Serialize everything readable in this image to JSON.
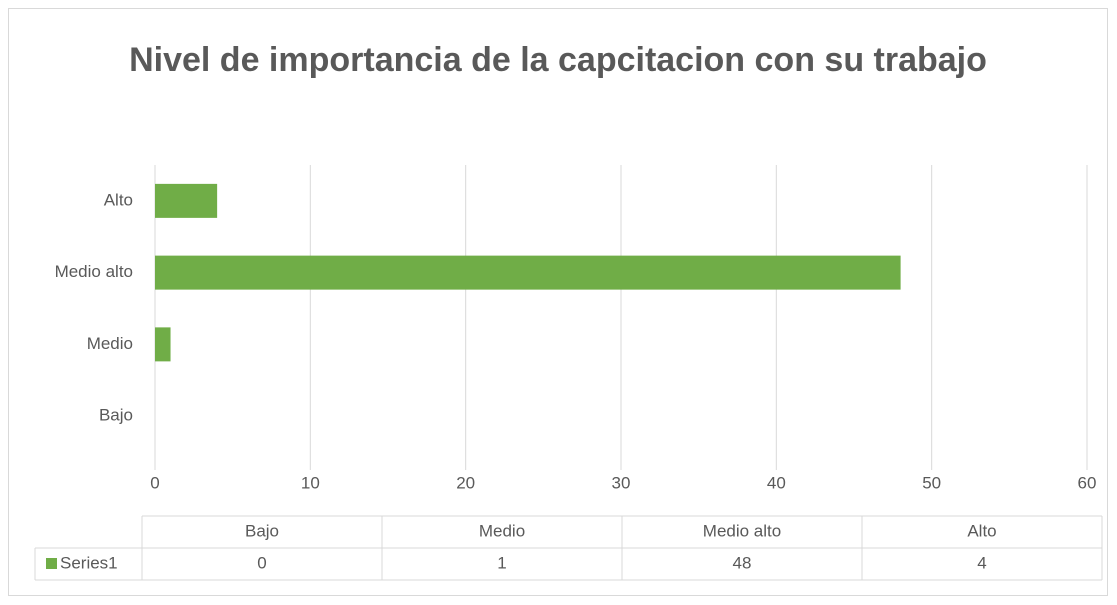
{
  "chart_data": {
    "type": "bar",
    "orientation": "horizontal",
    "title": "Nivel de importancia de la capcitacion con su trabajo",
    "categories": [
      "Bajo",
      "Medio",
      "Medio alto",
      "Alto"
    ],
    "series": [
      {
        "name": "Series1",
        "color": "#70ad47",
        "values": [
          0,
          1,
          48,
          4
        ]
      }
    ],
    "xlim": [
      0,
      60
    ],
    "xticks": [
      0,
      10,
      20,
      30,
      40,
      50,
      60
    ],
    "grid": true
  }
}
